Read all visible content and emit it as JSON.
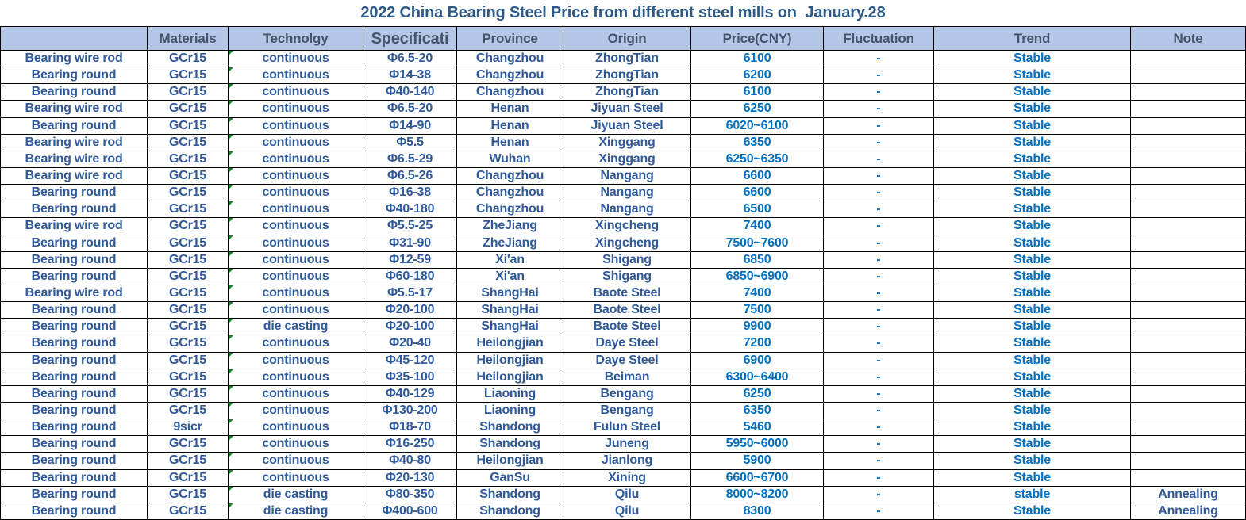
{
  "colors": {
    "header_bg": "#B4C7E7",
    "header_text": "#44546A",
    "dark_text": "#30599A",
    "bright_text": "#0070C0",
    "title_text": "#2D5986",
    "grid": "#000000",
    "error_indicator_green": "#1E7B34"
  },
  "icons": {
    "error_corner": "excel-error-corner-triangle"
  },
  "chart_data": {
    "type": "table",
    "title": "2022 China Bearing Steel Price from different steel mills on  January.28",
    "columns": [
      "",
      "Materials",
      "Technolgy",
      "Specificati",
      "Province",
      "Origin",
      "Price(CNY)",
      "Fluctuation",
      "Trend",
      "Note"
    ],
    "rows": [
      {
        "product": "Bearing wire rod",
        "material": "GCr15",
        "technology": "continuous",
        "specification": "Φ6.5-20",
        "province": "Changzhou",
        "origin": "ZhongTian",
        "price": "6100",
        "fluctuation": "-",
        "trend": "Stable",
        "note": ""
      },
      {
        "product": "Bearing round",
        "material": "GCr15",
        "technology": "continuous",
        "specification": "Φ14-38",
        "province": "Changzhou",
        "origin": "ZhongTian",
        "price": "6200",
        "fluctuation": "-",
        "trend": "Stable",
        "note": ""
      },
      {
        "product": "Bearing round",
        "material": "GCr15",
        "technology": "continuous",
        "specification": "Φ40-140",
        "province": "Changzhou",
        "origin": "ZhongTian",
        "price": "6100",
        "fluctuation": "-",
        "trend": "Stable",
        "note": ""
      },
      {
        "product": "Bearing wire rod",
        "material": "GCr15",
        "technology": "continuous",
        "specification": "Φ6.5-20",
        "province": "Henan",
        "origin": "Jiyuan Steel",
        "price": "6250",
        "fluctuation": "-",
        "trend": "Stable",
        "note": ""
      },
      {
        "product": "Bearing round",
        "material": "GCr15",
        "technology": "continuous",
        "specification": "Φ14-90",
        "province": "Henan",
        "origin": "Jiyuan Steel",
        "price": "6020~6100",
        "fluctuation": "-",
        "trend": "Stable",
        "note": ""
      },
      {
        "product": "Bearing wire rod",
        "material": "GCr15",
        "technology": "continuous",
        "specification": "Φ5.5",
        "province": "Henan",
        "origin": "Xinggang",
        "price": "6350",
        "fluctuation": "-",
        "trend": "Stable",
        "note": ""
      },
      {
        "product": "Bearing wire rod",
        "material": "GCr15",
        "technology": "continuous",
        "specification": "Φ6.5-29",
        "province": "Wuhan",
        "origin": "Xinggang",
        "price": "6250~6350",
        "fluctuation": "-",
        "trend": "Stable",
        "note": ""
      },
      {
        "product": "Bearing wire rod",
        "material": "GCr15",
        "technology": "continuous",
        "specification": "Φ6.5-26",
        "province": "Changzhou",
        "origin": "Nangang",
        "price": "6600",
        "fluctuation": "-",
        "trend": "Stable",
        "note": ""
      },
      {
        "product": "Bearing round",
        "material": "GCr15",
        "technology": "continuous",
        "specification": "Φ16-38",
        "province": "Changzhou",
        "origin": "Nangang",
        "price": "6600",
        "fluctuation": "-",
        "trend": "Stable",
        "note": ""
      },
      {
        "product": "Bearing round",
        "material": "GCr15",
        "technology": "continuous",
        "specification": "Φ40-180",
        "province": "Changzhou",
        "origin": "Nangang",
        "price": "6500",
        "fluctuation": "-",
        "trend": "Stable",
        "note": ""
      },
      {
        "product": "Bearing wire rod",
        "material": "GCr15",
        "technology": "continuous",
        "specification": "Φ5.5-25",
        "province": "ZheJiang",
        "origin": "Xingcheng",
        "price": "7400",
        "fluctuation": "-",
        "trend": "Stable",
        "note": ""
      },
      {
        "product": "Bearing round",
        "material": "GCr15",
        "technology": "continuous",
        "specification": "Φ31-90",
        "province": "ZheJiang",
        "origin": "Xingcheng",
        "price": "7500~7600",
        "fluctuation": "-",
        "trend": "Stable",
        "note": ""
      },
      {
        "product": "Bearing round",
        "material": "GCr15",
        "technology": "continuous",
        "specification": "Φ12-59",
        "province": "Xi'an",
        "origin": "Shigang",
        "price": "6850",
        "fluctuation": "-",
        "trend": "Stable",
        "note": ""
      },
      {
        "product": "Bearing round",
        "material": "GCr15",
        "technology": "continuous",
        "specification": "Φ60-180",
        "province": "Xi'an",
        "origin": "Shigang",
        "price": "6850~6900",
        "fluctuation": "-",
        "trend": "Stable",
        "note": ""
      },
      {
        "product": "Bearing wire rod",
        "material": "GCr15",
        "technology": "continuous",
        "specification": "Φ5.5-17",
        "province": "ShangHai",
        "origin": "Baote Steel",
        "price": "7400",
        "fluctuation": "-",
        "trend": "Stable",
        "note": ""
      },
      {
        "product": "Bearing round",
        "material": "GCr15",
        "technology": "continuous",
        "specification": "Φ20-100",
        "province": "ShangHai",
        "origin": "Baote Steel",
        "price": "7500",
        "fluctuation": "-",
        "trend": "Stable",
        "note": ""
      },
      {
        "product": "Bearing round",
        "material": "GCr15",
        "technology": "die casting",
        "specification": "Φ20-100",
        "province": "ShangHai",
        "origin": "Baote Steel",
        "price": "9900",
        "fluctuation": "-",
        "trend": "Stable",
        "note": ""
      },
      {
        "product": "Bearing round",
        "material": "GCr15",
        "technology": "continuous",
        "specification": "Φ20-40",
        "province": "Heilongjian",
        "origin": "Daye  Steel",
        "price": "7200",
        "fluctuation": "-",
        "trend": "Stable",
        "note": ""
      },
      {
        "product": "Bearing round",
        "material": "GCr15",
        "technology": "continuous",
        "specification": "Φ45-120",
        "province": "Heilongjian",
        "origin": "Daye  Steel",
        "price": "6900",
        "fluctuation": "-",
        "trend": "Stable",
        "note": ""
      },
      {
        "product": "Bearing round",
        "material": "GCr15",
        "technology": "continuous",
        "specification": "Φ35-100",
        "province": "Heilongjian",
        "origin": "Beiman",
        "price": "6300~6400",
        "fluctuation": "-",
        "trend": "Stable",
        "note": ""
      },
      {
        "product": "Bearing round",
        "material": "GCr15",
        "technology": "continuous",
        "specification": "Φ40-129",
        "province": "Liaoning",
        "origin": "Bengang",
        "price": "6250",
        "fluctuation": "-",
        "trend": "Stable",
        "note": ""
      },
      {
        "product": "Bearing round",
        "material": "GCr15",
        "technology": "continuous",
        "specification": "Φ130-200",
        "province": "Liaoning",
        "origin": "Bengang",
        "price": "6350",
        "fluctuation": "-",
        "trend": "Stable",
        "note": ""
      },
      {
        "product": "Bearing round",
        "material": "9sicr",
        "technology": "continuous",
        "specification": "Φ18-70",
        "province": "Shandong",
        "origin": "Fulun Steel",
        "price": "5460",
        "fluctuation": "-",
        "trend": "Stable",
        "note": ""
      },
      {
        "product": "Bearing round",
        "material": "GCr15",
        "technology": "continuous",
        "specification": "Φ16-250",
        "province": "Shandong",
        "origin": "Juneng",
        "price": "5950~6000",
        "fluctuation": "-",
        "trend": "Stable",
        "note": ""
      },
      {
        "product": "Bearing round",
        "material": "GCr15",
        "technology": "continuous",
        "specification": "Φ40-80",
        "province": "Heilongjian",
        "origin": "Jianlong",
        "price": "5900",
        "fluctuation": "-",
        "trend": "Stable",
        "note": ""
      },
      {
        "product": "Bearing round",
        "material": "GCr15",
        "technology": "continuous",
        "specification": "Φ20-130",
        "province": "GanSu",
        "origin": "Xining",
        "price": "6600~6700",
        "fluctuation": "-",
        "trend": "Stable",
        "note": ""
      },
      {
        "product": "Bearing round",
        "material": "GCr15",
        "technology": "die casting",
        "specification": "Φ80-350",
        "province": "Shandong",
        "origin": "Qilu",
        "price": "8000~8200",
        "fluctuation": "-",
        "trend": "stable",
        "note": "Annealing"
      },
      {
        "product": "Bearing round",
        "material": "GCr15",
        "technology": "die casting",
        "specification": "Φ400-600",
        "province": "Shandong",
        "origin": "Qilu",
        "price": "8300",
        "fluctuation": "-",
        "trend": "Stable",
        "note": "Annealing"
      }
    ]
  }
}
